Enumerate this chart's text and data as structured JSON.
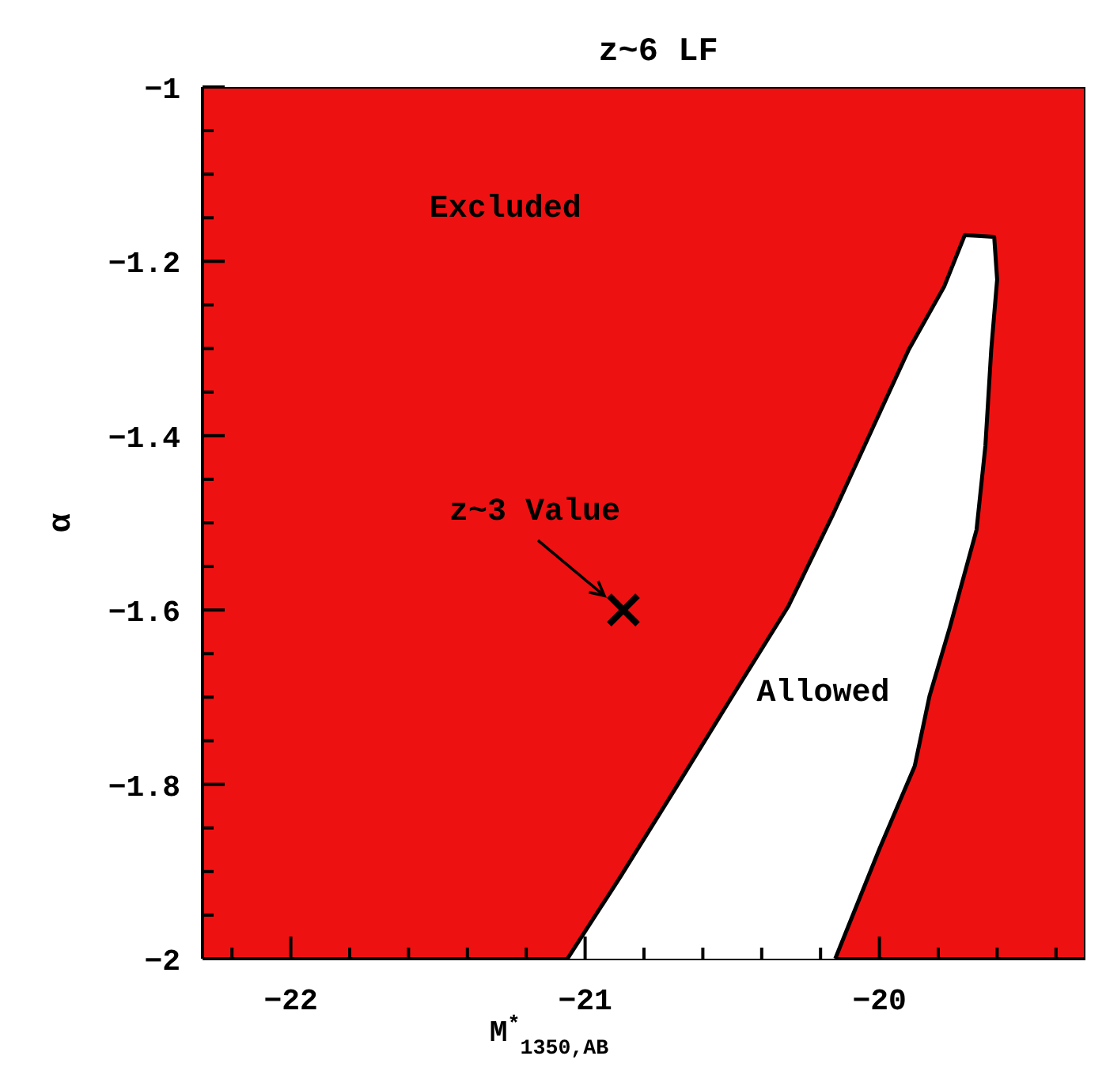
{
  "chart_data": {
    "type": "area",
    "title": "z~6 LF",
    "xlabel": "M$^{*}$$_{1350,AB}$",
    "ylabel": "α",
    "xlim": [
      -22.3,
      -19.3
    ],
    "ylim": [
      -2,
      -1
    ],
    "xticks": [
      {
        "value": -22.2,
        "label": null
      },
      -22,
      {
        "value": -21.8,
        "label": null
      },
      {
        "value": -21.6,
        "label": null
      },
      {
        "value": -21.4,
        "label": null
      },
      {
        "value": -21.2,
        "label": null
      },
      -21,
      {
        "value": -20.8,
        "label": null
      },
      {
        "value": -20.6,
        "label": null
      },
      {
        "value": -20.4,
        "label": null
      },
      {
        "value": -20.2,
        "label": null
      },
      -20,
      {
        "value": -19.8,
        "label": null
      },
      {
        "value": -19.6,
        "label": null
      },
      {
        "value": -19.4,
        "label": null
      }
    ],
    "yticks": [
      -2,
      {
        "value": -1.95,
        "label": null
      },
      {
        "value": -1.9,
        "label": null
      },
      {
        "value": -1.85,
        "label": null
      },
      -1.8,
      {
        "value": -1.75,
        "label": null
      },
      {
        "value": -1.7,
        "label": null
      },
      {
        "value": -1.65,
        "label": null
      },
      -1.6,
      {
        "value": -1.55,
        "label": null
      },
      {
        "value": -1.5,
        "label": null
      },
      {
        "value": -1.45,
        "label": null
      },
      -1.4,
      {
        "value": -1.35,
        "label": null
      },
      {
        "value": -1.3,
        "label": null
      },
      {
        "value": -1.25,
        "label": null
      },
      -1.2,
      {
        "value": -1.15,
        "label": null
      },
      {
        "value": -1.1,
        "label": null
      },
      {
        "value": -1.05,
        "label": null
      },
      -1
    ],
    "bands": [
      {
        "axis": "x",
        "from": -22.3,
        "to": -19.3,
        "color": "#ee1111"
      }
    ],
    "series": [
      {
        "color": "#ffffff",
        "x": [
          -21.06,
          -20.88,
          -20.69,
          -20.5,
          -20.31,
          -20.16,
          -20.02,
          -19.9,
          -19.78,
          -19.71,
          -19.61,
          -19.6,
          -19.62,
          -19.64,
          -19.67,
          -19.76,
          -19.83,
          -19.88,
          -20.0,
          -20.15
        ],
        "values": [
          -2.0,
          -1.906,
          -1.803,
          -1.699,
          -1.596,
          -1.492,
          -1.389,
          -1.301,
          -1.229,
          -1.17,
          -1.172,
          -1.221,
          -1.301,
          -1.412,
          -1.508,
          -1.619,
          -1.699,
          -1.779,
          -1.874,
          -2.0
        ]
      },
      {
        "type": "scatter",
        "marker": "cross",
        "color": "#000000",
        "x": [
          -20.87
        ],
        "values": [
          -1.6
        ]
      }
    ],
    "annotations": [
      "Excluded",
      "Allowed",
      {
        "text": "z~3 Value",
        "x": -20.87,
        "y": -1.6
      }
    ]
  }
}
